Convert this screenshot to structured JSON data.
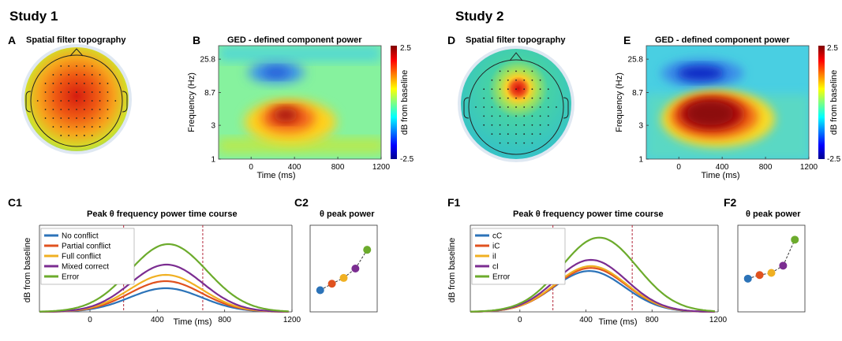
{
  "studies": [
    {
      "title": "Study 1"
    },
    {
      "title": "Study 2"
    }
  ],
  "panels": [
    {
      "letter": "A",
      "title": "Spatial filter topography"
    },
    {
      "letter": "B",
      "title": "GED - defined component power"
    },
    {
      "letter": "C1",
      "title": "Peak θ frequency power time course"
    },
    {
      "letter": "C2",
      "title": "θ peak power"
    },
    {
      "letter": "D",
      "title": "Spatial filter topography"
    },
    {
      "letter": "E",
      "title": "GED - defined component power"
    },
    {
      "letter": "F1",
      "title": "Peak θ frequency power time course"
    },
    {
      "letter": "F2",
      "title": "θ peak power"
    }
  ],
  "colors": {
    "no_conflict": "#2c73b8",
    "partial": "#e0521f",
    "full": "#f0b022",
    "mixed": "#7b2d91",
    "error": "#6cab2c",
    "dashed": "#b4283b"
  },
  "chart_data": [
    {
      "id": "A",
      "type": "heatmap",
      "kind": "scalp-topography",
      "peak": "central",
      "peak_value": "high",
      "electrodes": "60-channel grid"
    },
    {
      "id": "B",
      "type": "heatmap",
      "kind": "time-frequency",
      "xlabel": "Time (ms)",
      "ylabel": "Frequency (Hz)",
      "xticks": [
        "0",
        "400",
        "800",
        "1200"
      ],
      "yticks": [
        "1",
        "3",
        "8.7",
        "25.8"
      ],
      "xlim": [
        -300,
        1200
      ],
      "ylim_log": [
        1,
        40
      ],
      "colorbar": {
        "label": "dB  from baseline",
        "max": "2.5",
        "min": "-2.5"
      },
      "features": [
        {
          "time": 430,
          "freq": 5,
          "dB": 2.2,
          "label": "theta increase"
        },
        {
          "time": 400,
          "freq": 21,
          "dB": -1.6,
          "label": "beta decrease"
        }
      ]
    },
    {
      "id": "C1",
      "type": "line",
      "xlabel": "Time (ms)",
      "ylabel": "dB  from baseline",
      "xticks": [
        "0",
        "400",
        "800",
        "1200"
      ],
      "xlim": [
        -300,
        1200
      ],
      "vlines": [
        200,
        670
      ],
      "legend": "top-left",
      "series": [
        {
          "name": "No conflict",
          "peak": 1.5,
          "peak_time": 450
        },
        {
          "name": "Partial conflict",
          "peak": 1.95,
          "peak_time": 450
        },
        {
          "name": "Full conflict",
          "peak": 2.35,
          "peak_time": 450
        },
        {
          "name": "Mixed correct",
          "peak": 3.0,
          "peak_time": 455
        },
        {
          "name": "Error",
          "peak": 4.3,
          "peak_time": 465
        }
      ]
    },
    {
      "id": "C2",
      "type": "scatter",
      "connection": "dashed",
      "values": [
        1.5,
        1.95,
        2.35,
        3.0,
        4.3
      ]
    },
    {
      "id": "D",
      "type": "heatmap",
      "kind": "scalp-topography",
      "peak": "frontocentral",
      "peak_value": "high",
      "electrodes": "60-channel grid"
    },
    {
      "id": "E",
      "type": "heatmap",
      "kind": "time-frequency",
      "xlabel": "Time (ms)",
      "ylabel": "Frequency (Hz)",
      "xticks": [
        "0",
        "400",
        "800",
        "1200"
      ],
      "yticks": [
        "1",
        "3",
        "8.7",
        "25.8"
      ],
      "xlim": [
        -300,
        1200
      ],
      "ylim_log": [
        1,
        40
      ],
      "colorbar": {
        "label": "dB  from baseline",
        "max": "2.5",
        "min": "-2.5"
      },
      "features": [
        {
          "time": 420,
          "freq": 5,
          "dB": 2.8,
          "label": "theta increase"
        },
        {
          "time": 400,
          "freq": 20,
          "dB": -1.9,
          "label": "beta decrease"
        }
      ]
    },
    {
      "id": "F1",
      "type": "line",
      "xlabel": "Time (ms)",
      "ylabel": "dB  from baseline",
      "xticks": [
        "0",
        "400",
        "800",
        "1200"
      ],
      "xlim": [
        -300,
        1200
      ],
      "vlines": [
        200,
        680
      ],
      "legend": "top-left",
      "series": [
        {
          "name": "cC",
          "peak": 3.3,
          "peak_time": 420
        },
        {
          "name": "iC",
          "peak": 3.55,
          "peak_time": 430
        },
        {
          "name": "iI",
          "peak": 3.7,
          "peak_time": 430
        },
        {
          "name": "cI",
          "peak": 4.2,
          "peak_time": 430
        },
        {
          "name": "Error",
          "peak": 6.0,
          "peak_time": 480
        }
      ]
    },
    {
      "id": "F2",
      "type": "scatter",
      "connection": "dashed",
      "values": [
        3.3,
        3.55,
        3.7,
        4.2,
        6.0
      ]
    }
  ]
}
